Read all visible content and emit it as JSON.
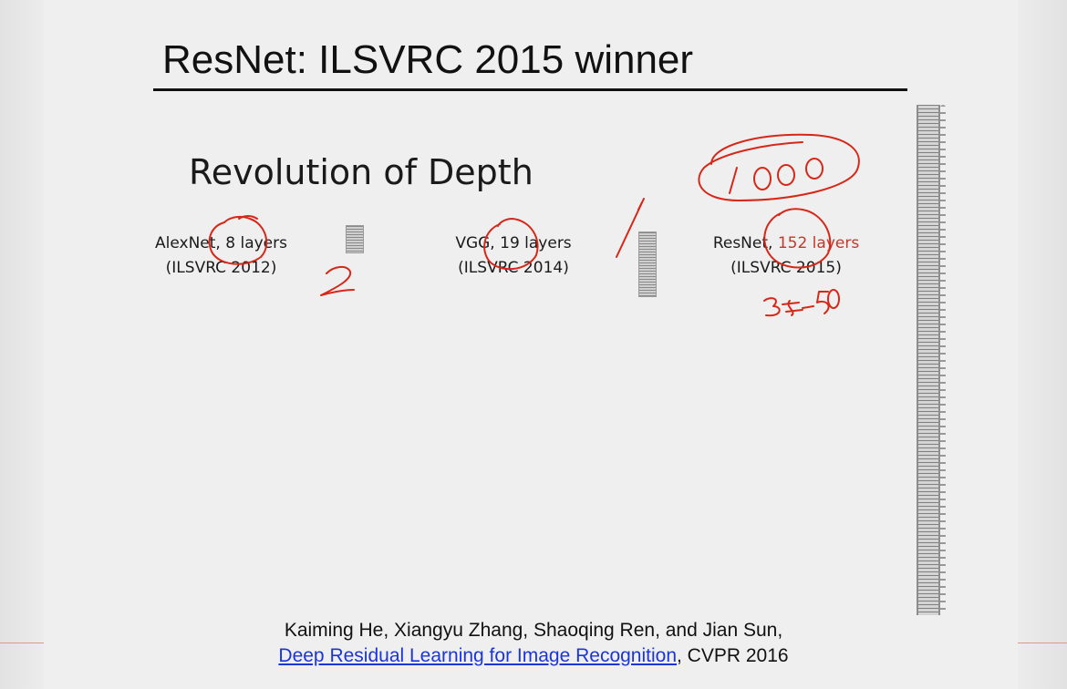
{
  "slide": {
    "title": "ResNet: ILSVRC 2015 winner",
    "subtitle": "Revolution of Depth",
    "networks": [
      {
        "name": "AlexNet, ",
        "layers": "8 layers",
        "competition": "(ILSVRC 2012)"
      },
      {
        "name": "VGG, ",
        "layers": "19 layers",
        "competition": "(ILSVRC 2014)"
      },
      {
        "name": "ResNet, ",
        "layers": "152 layers",
        "competition": "(ILSVRC 2015)"
      }
    ],
    "citation": {
      "authors": "Kaiming He, Xiangyu Zhang, Shaoqing Ren, and Jian Sun,",
      "paper_link": "Deep Residual Learning for Image Recognition",
      "venue": ", CVPR 2016"
    }
  },
  "colors": {
    "ink": "#d62718",
    "highlight": "#c0392b",
    "link": "#1a36d8"
  }
}
